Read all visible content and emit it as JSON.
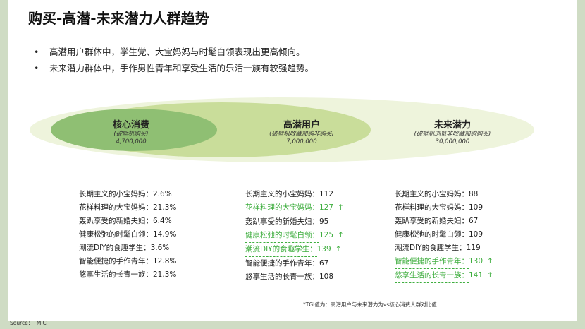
{
  "title": "购买-高潜-未来潜力人群趋势",
  "bullets": [
    "高潜用户群体中，学生党、大宝妈妈与时髦白领表现出更高倾向。",
    "未来潜力群体中，手作男性青年和享受生活的乐活一族有较强趋势。"
  ],
  "segments": [
    {
      "title": "核心消费",
      "sub": "(破壁机购买)",
      "count": "4,700,000"
    },
    {
      "title": "高潜用户",
      "sub": "(破壁机收藏加购非购买)",
      "count": "7,000,000"
    },
    {
      "title": "未来潜力",
      "sub": "(破壁机浏览非收藏加购购买)",
      "count": "30,000,000"
    }
  ],
  "colors": {
    "outer_ellipse": "#eef4dc",
    "middle_ellipse": "#c9dd9a",
    "inner_ellipse": "#8fbf73",
    "highlight": "#3fae3f"
  },
  "core_list": [
    {
      "label": "长期主义的小宝妈妈：",
      "value": "2.6%"
    },
    {
      "label": "花样料理的大宝妈妈：",
      "value": "21.3%"
    },
    {
      "label": "轰趴享受的新婚夫妇：",
      "value": "6.4%"
    },
    {
      "label": "健康松弛的时髦白领：",
      "value": "14.9%"
    },
    {
      "label": "潮流DIY的食趣学生：",
      "value": "3.6%"
    },
    {
      "label": "智能便捷的手作青年：",
      "value": "12.8%"
    },
    {
      "label": "悠享生活的长青一族：",
      "value": "21.3%"
    }
  ],
  "potential_list": [
    {
      "label": "长期主义的小宝妈妈：",
      "value": "112",
      "arrow": ""
    },
    {
      "label": "花样料理的大宝妈妈：",
      "value": "127",
      "arrow": "↑"
    },
    {
      "label": "轰趴享受的新婚夫妇：",
      "value": "95",
      "arrow": ""
    },
    {
      "label": "健康松弛的时髦白领：",
      "value": "125",
      "arrow": "↑"
    },
    {
      "label": "潮流DIY的食趣学生：",
      "value": "139",
      "arrow": "↑"
    },
    {
      "label": "智能便捷的手作青年：",
      "value": "67",
      "arrow": ""
    },
    {
      "label": "悠享生活的长青一族：",
      "value": "108",
      "arrow": ""
    }
  ],
  "future_list": [
    {
      "label": "长期主义的小宝妈妈：",
      "value": "88",
      "arrow": ""
    },
    {
      "label": "花样料理的大宝妈妈：",
      "value": "109",
      "arrow": ""
    },
    {
      "label": "轰趴享受的新婚夫妇：",
      "value": "67",
      "arrow": ""
    },
    {
      "label": "健康松弛的时髦白领：",
      "value": "109",
      "arrow": ""
    },
    {
      "label": "潮流DIY的食趣学生：",
      "value": "119",
      "arrow": ""
    },
    {
      "label": "智能便捷的手作青年：",
      "value": "130",
      "arrow": "↑"
    },
    {
      "label": "悠享生活的长青一族：",
      "value": "141",
      "arrow": "↑"
    }
  ],
  "note": "*TGI值为：高潜用户与未来潜力为vs核心消费人群对比值",
  "source": "Source：TMIC"
}
